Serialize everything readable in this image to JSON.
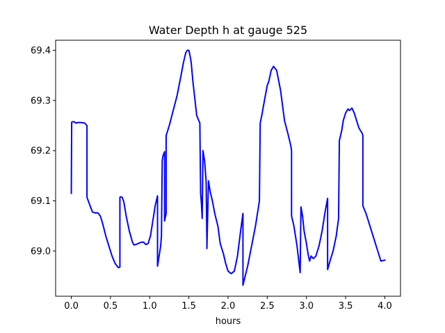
{
  "chart_data": {
    "type": "line",
    "title": "Water Depth h at gauge 525",
    "xlabel": "hours",
    "ylabel": "",
    "xlim": [
      -0.2,
      4.2
    ],
    "ylim": [
      68.91,
      69.42
    ],
    "xticks": [
      0.0,
      0.5,
      1.0,
      1.5,
      2.0,
      2.5,
      3.0,
      3.5,
      4.0
    ],
    "xtick_labels": [
      "0.0",
      "0.5",
      "1.0",
      "1.5",
      "2.0",
      "2.5",
      "3.0",
      "3.5",
      "4.0"
    ],
    "yticks": [
      69.0,
      69.1,
      69.2,
      69.3,
      69.4
    ],
    "ytick_labels": [
      "69.0",
      "69.1",
      "69.2",
      "69.3",
      "69.4"
    ],
    "grid": false,
    "series": [
      {
        "color": "#0000ff",
        "x": [
          0.0,
          0.005,
          0.03,
          0.06,
          0.08,
          0.12,
          0.17,
          0.2,
          0.2,
          0.24,
          0.27,
          0.3,
          0.34,
          0.37,
          0.4,
          0.44,
          0.48,
          0.52,
          0.56,
          0.6,
          0.62,
          0.62,
          0.63,
          0.65,
          0.67,
          0.7,
          0.74,
          0.78,
          0.8,
          0.84,
          0.88,
          0.92,
          0.95,
          0.98,
          1.01,
          1.04,
          1.07,
          1.1,
          1.1,
          1.12,
          1.14,
          1.15,
          1.16,
          1.17,
          1.19,
          1.19,
          1.21,
          1.21,
          1.25,
          1.3,
          1.35,
          1.4,
          1.43,
          1.46,
          1.48,
          1.5,
          1.52,
          1.53,
          1.55,
          1.6,
          1.64,
          1.65,
          1.66,
          1.67,
          1.68,
          1.7,
          1.72,
          1.73,
          1.73,
          1.75,
          1.77,
          1.8,
          1.83,
          1.87,
          1.9,
          1.94,
          1.97,
          2.0,
          2.04,
          2.08,
          2.12,
          2.16,
          2.19,
          2.19,
          2.21,
          2.25,
          2.3,
          2.35,
          2.4,
          2.41,
          2.43,
          2.47,
          2.5,
          2.52,
          2.55,
          2.58,
          2.62,
          2.67,
          2.72,
          2.77,
          2.8,
          2.81,
          2.81,
          2.84,
          2.88,
          2.92,
          2.93,
          2.95,
          2.97,
          3.0,
          3.02,
          3.04,
          3.06,
          3.09,
          3.12,
          3.16,
          3.2,
          3.24,
          3.27,
          3.27,
          3.3,
          3.34,
          3.38,
          3.41,
          3.42,
          3.45,
          3.47,
          3.5,
          3.53,
          3.55,
          3.58,
          3.61,
          3.64,
          3.67,
          3.71,
          3.72,
          3.72,
          3.76,
          3.8,
          3.85,
          3.9,
          3.95,
          4.0
        ],
        "y": [
          69.115,
          69.257,
          69.258,
          69.255,
          69.256,
          69.256,
          69.255,
          69.25,
          69.107,
          69.09,
          69.078,
          69.076,
          69.076,
          69.07,
          69.055,
          69.03,
          69.01,
          68.99,
          68.975,
          68.967,
          68.968,
          69.107,
          69.108,
          69.107,
          69.098,
          69.07,
          69.04,
          69.018,
          69.012,
          69.014,
          69.017,
          69.018,
          69.013,
          69.015,
          69.03,
          69.06,
          69.09,
          69.11,
          68.97,
          68.99,
          69.01,
          69.03,
          69.18,
          69.19,
          69.198,
          69.06,
          69.075,
          69.23,
          69.25,
          69.28,
          69.31,
          69.35,
          69.375,
          69.395,
          69.4,
          69.4,
          69.385,
          69.375,
          69.34,
          69.27,
          69.255,
          69.115,
          69.095,
          69.065,
          69.2,
          69.18,
          69.14,
          69.02,
          69.005,
          69.14,
          69.12,
          69.1,
          69.075,
          69.05,
          69.015,
          68.995,
          68.975,
          68.96,
          68.955,
          68.96,
          68.99,
          69.04,
          69.075,
          68.932,
          68.945,
          68.97,
          69.01,
          69.05,
          69.1,
          69.255,
          69.27,
          69.305,
          69.33,
          69.338,
          69.36,
          69.368,
          69.36,
          69.32,
          69.26,
          69.23,
          69.21,
          69.2,
          69.07,
          69.05,
          69.01,
          68.957,
          69.088,
          69.07,
          69.04,
          69.015,
          68.995,
          68.98,
          68.99,
          68.985,
          68.99,
          69.01,
          69.04,
          69.08,
          69.105,
          68.963,
          68.98,
          69.0,
          69.03,
          69.065,
          69.22,
          69.24,
          69.26,
          69.275,
          69.283,
          69.28,
          69.285,
          69.275,
          69.26,
          69.245,
          69.235,
          69.23,
          69.09,
          69.075,
          69.055,
          69.03,
          69.005,
          68.98,
          68.982
        ]
      }
    ]
  }
}
